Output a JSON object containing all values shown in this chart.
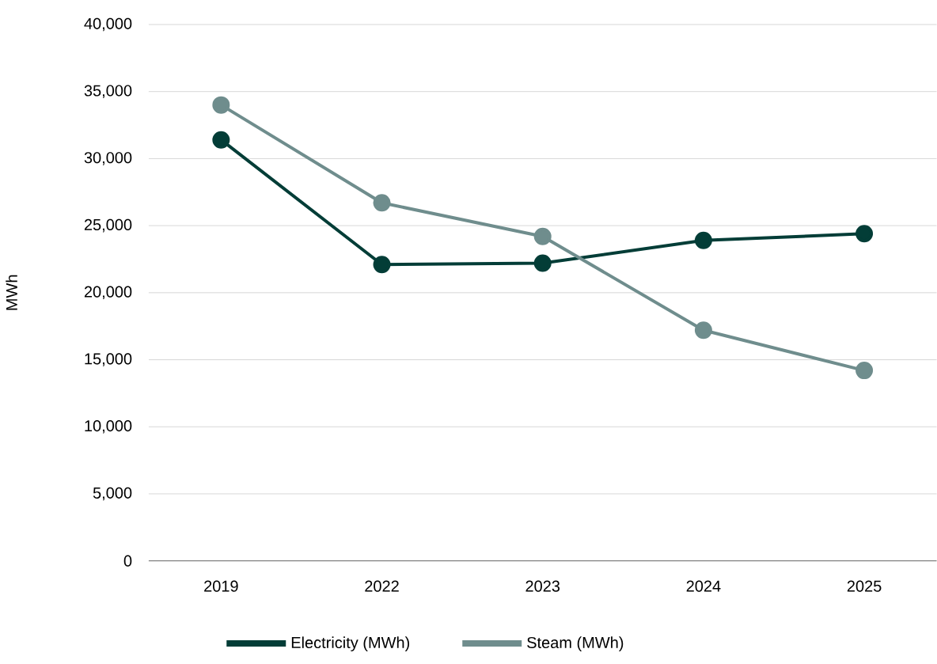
{
  "chart_data": {
    "type": "line",
    "ylabel": "MWh",
    "categories": [
      "2019",
      "2022",
      "2023",
      "2024",
      "2025"
    ],
    "series": [
      {
        "name": "Electricity (MWh)",
        "color": "#033d37",
        "values": [
          31400,
          22100,
          22200,
          23900,
          24400
        ]
      },
      {
        "name": "Steam (MWh)",
        "color": "#6f8d8d",
        "values": [
          34000,
          26700,
          24200,
          17200,
          14200
        ]
      }
    ],
    "ylim": [
      0,
      40000
    ],
    "yticks": [
      {
        "value": 0,
        "label": "0"
      },
      {
        "value": 5000,
        "label": "5,000"
      },
      {
        "value": 10000,
        "label": "10,000"
      },
      {
        "value": 15000,
        "label": "15,000"
      },
      {
        "value": 20000,
        "label": "20,000"
      },
      {
        "value": 25000,
        "label": "25,000"
      },
      {
        "value": 30000,
        "label": "30,000"
      },
      {
        "value": 35000,
        "label": "35,000"
      },
      {
        "value": 40000,
        "label": "40,000"
      }
    ],
    "grid": "y",
    "legend": "bottom",
    "marker": "circle",
    "line_style": "solid"
  }
}
